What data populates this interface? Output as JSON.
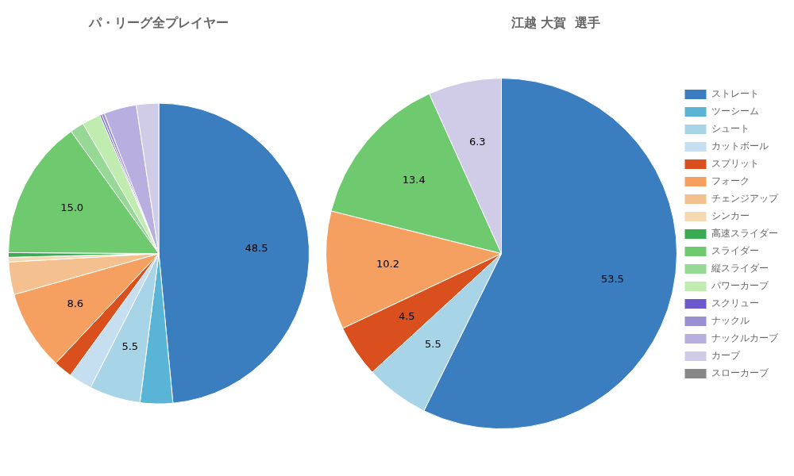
{
  "chart_data": [
    {
      "type": "pie",
      "title": "パ・リーグ全プレイヤー",
      "categories": [
        "ストレート",
        "ツーシーム",
        "シュート",
        "カットボール",
        "スプリット",
        "フォーク",
        "チェンジアップ",
        "シンカー",
        "高速スライダー",
        "スライダー",
        "縦スライダー",
        "パワーカーブ",
        "スクリュー",
        "ナックル",
        "ナックルカーブ",
        "カーブ",
        "スローカーブ"
      ],
      "values": [
        48.5,
        3.5,
        5.5,
        2.5,
        2.0,
        8.6,
        3.5,
        0.5,
        0.5,
        15.0,
        1.5,
        2.0,
        0.2,
        0.3,
        3.5,
        2.4,
        0.0
      ],
      "colors": [
        "#3a7ebf",
        "#5ab4d6",
        "#a8d4e8",
        "#c5dff0",
        "#d94f1e",
        "#f5a060",
        "#f5c090",
        "#f5d9b0",
        "#3aaa55",
        "#6fc96f",
        "#96d896",
        "#c0ecb0",
        "#6a5acd",
        "#9a8fd0",
        "#b8aee0",
        "#d0cce8",
        "#888888"
      ],
      "data_labels": true,
      "value_labels": [
        "48.5",
        null,
        "5.5",
        null,
        null,
        "8.6",
        null,
        null,
        null,
        "15.0",
        null,
        null,
        null,
        null,
        null,
        null,
        null
      ]
    },
    {
      "type": "pie",
      "title": "江越 大賀  選手",
      "categories": [
        "ストレート",
        "ツーシーム",
        "シュート",
        "カットボール",
        "スプリット",
        "フォーク",
        "チェンジアップ",
        "シンカー",
        "高速スライダー",
        "スライダー",
        "縦スライダー",
        "パワーカーブ",
        "スクリュー",
        "ナックル",
        "ナックルカーブ",
        "カーブ",
        "スローカーブ"
      ],
      "values": [
        53.5,
        0.0,
        5.5,
        0.0,
        4.5,
        10.2,
        0.0,
        0.0,
        0.0,
        13.4,
        0.0,
        0.0,
        0.0,
        0.0,
        0.0,
        6.3,
        0.0
      ],
      "colors": [
        "#3a7ebf",
        "#5ab4d6",
        "#a8d4e8",
        "#c5dff0",
        "#d94f1e",
        "#f5a060",
        "#f5c090",
        "#f5d9b0",
        "#3aaa55",
        "#6fc96f",
        "#96d896",
        "#c0ecb0",
        "#6a5acd",
        "#9a8fd0",
        "#b8aee0",
        "#d0cce8",
        "#888888"
      ],
      "data_labels": true,
      "value_labels": [
        "53.5",
        null,
        "5.5",
        null,
        "4.5",
        "10.2",
        null,
        null,
        null,
        "13.4",
        null,
        null,
        null,
        null,
        null,
        "6.3",
        null
      ],
      "legend": "right"
    }
  ]
}
